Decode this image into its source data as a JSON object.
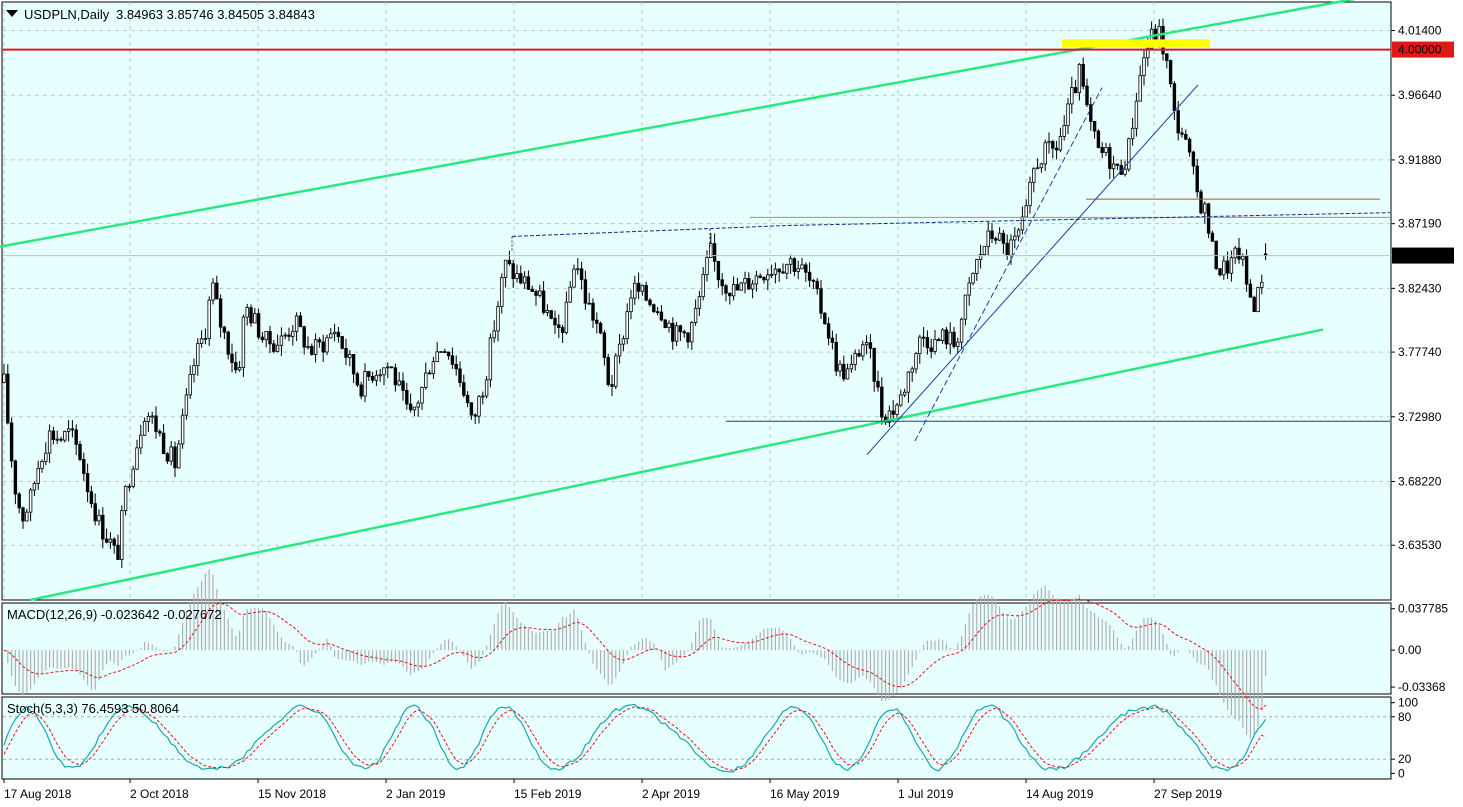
{
  "header": {
    "symbol": "USDPLN,Daily",
    "ohlc": "3.84963 3.85746 3.84505 3.84843"
  },
  "colors": {
    "background": "#e8ffff",
    "channel": "#2be87e",
    "resistance": "#e01818",
    "highlight": "#ffff00",
    "trend": "#1a3fa0",
    "macd_hist": "#b0b0b0",
    "macd_signal": "#e01818",
    "stoch_main": "#18a8b0",
    "stoch_signal": "#e01818",
    "current_price_label": "#000000"
  },
  "chart_data": [
    {
      "type": "candlestick",
      "title": "USDPLN,Daily",
      "ylim": [
        3.595,
        4.035
      ],
      "y_ticks": [
        "4.01400",
        "3.96640",
        "3.91880",
        "3.87190",
        "3.82430",
        "3.77740",
        "3.72980",
        "3.68220",
        "3.63530"
      ],
      "x_ticks": [
        "17 Aug 2018",
        "2 Oct 2018",
        "15 Nov 2018",
        "2 Jan 2019",
        "15 Feb 2019",
        "2 Apr 2019",
        "16 May 2019",
        "1 Jul 2019",
        "14 Aug 2019",
        "27 Sep 2019"
      ],
      "price_path": [
        [
          0,
          3.785
        ],
        [
          6,
          3.74
        ],
        [
          14,
          3.682
        ],
        [
          22,
          3.655
        ],
        [
          30,
          3.668
        ],
        [
          40,
          3.7
        ],
        [
          50,
          3.718
        ],
        [
          60,
          3.714
        ],
        [
          70,
          3.718
        ],
        [
          80,
          3.702
        ],
        [
          90,
          3.672
        ],
        [
          100,
          3.65
        ],
        [
          110,
          3.638
        ],
        [
          117,
          3.625
        ],
        [
          125,
          3.672
        ],
        [
          135,
          3.705
        ],
        [
          145,
          3.735
        ],
        [
          155,
          3.724
        ],
        [
          165,
          3.708
        ],
        [
          175,
          3.695
        ],
        [
          185,
          3.735
        ],
        [
          195,
          3.772
        ],
        [
          205,
          3.793
        ],
        [
          212,
          3.828
        ],
        [
          220,
          3.8
        ],
        [
          230,
          3.778
        ],
        [
          238,
          3.76
        ],
        [
          245,
          3.812
        ],
        [
          255,
          3.8
        ],
        [
          265,
          3.785
        ],
        [
          280,
          3.785
        ],
        [
          295,
          3.8
        ],
        [
          310,
          3.778
        ],
        [
          325,
          3.785
        ],
        [
          335,
          3.795
        ],
        [
          345,
          3.778
        ],
        [
          360,
          3.752
        ],
        [
          375,
          3.765
        ],
        [
          390,
          3.768
        ],
        [
          400,
          3.748
        ],
        [
          410,
          3.728
        ],
        [
          420,
          3.746
        ],
        [
          432,
          3.774
        ],
        [
          445,
          3.784
        ],
        [
          455,
          3.768
        ],
        [
          465,
          3.748
        ],
        [
          472,
          3.724
        ],
        [
          485,
          3.758
        ],
        [
          495,
          3.8
        ],
        [
          505,
          3.842
        ],
        [
          515,
          3.834
        ],
        [
          530,
          3.826
        ],
        [
          545,
          3.81
        ],
        [
          555,
          3.79
        ],
        [
          565,
          3.8
        ],
        [
          575,
          3.848
        ],
        [
          585,
          3.818
        ],
        [
          598,
          3.796
        ],
        [
          610,
          3.75
        ],
        [
          620,
          3.78
        ],
        [
          632,
          3.825
        ],
        [
          645,
          3.818
        ],
        [
          660,
          3.81
        ],
        [
          675,
          3.79
        ],
        [
          690,
          3.793
        ],
        [
          700,
          3.818
        ],
        [
          710,
          3.852
        ],
        [
          720,
          3.832
        ],
        [
          735,
          3.822
        ],
        [
          750,
          3.83
        ],
        [
          765,
          3.838
        ],
        [
          780,
          3.842
        ],
        [
          790,
          3.845
        ],
        [
          800,
          3.84
        ],
        [
          812,
          3.826
        ],
        [
          825,
          3.802
        ],
        [
          838,
          3.765
        ],
        [
          850,
          3.762
        ],
        [
          862,
          3.785
        ],
        [
          872,
          3.77
        ],
        [
          882,
          3.733
        ],
        [
          890,
          3.733
        ],
        [
          900,
          3.742
        ],
        [
          912,
          3.77
        ],
        [
          922,
          3.79
        ],
        [
          935,
          3.784
        ],
        [
          945,
          3.79
        ],
        [
          955,
          3.783
        ],
        [
          965,
          3.812
        ],
        [
          975,
          3.84
        ],
        [
          985,
          3.858
        ],
        [
          995,
          3.866
        ],
        [
          1005,
          3.852
        ],
        [
          1015,
          3.858
        ],
        [
          1025,
          3.874
        ],
        [
          1035,
          3.916
        ],
        [
          1045,
          3.924
        ],
        [
          1055,
          3.926
        ],
        [
          1065,
          3.945
        ],
        [
          1072,
          3.965
        ],
        [
          1080,
          3.983
        ],
        [
          1088,
          3.95
        ],
        [
          1098,
          3.925
        ],
        [
          1108,
          3.922
        ],
        [
          1118,
          3.91
        ],
        [
          1128,
          3.924
        ],
        [
          1136,
          3.965
        ],
        [
          1144,
          3.995
        ],
        [
          1152,
          4.01
        ],
        [
          1160,
          4.012
        ],
        [
          1168,
          3.985
        ],
        [
          1175,
          3.948
        ],
        [
          1182,
          3.94
        ],
        [
          1190,
          3.918
        ],
        [
          1198,
          3.892
        ],
        [
          1206,
          3.88
        ],
        [
          1212,
          3.853
        ],
        [
          1220,
          3.838
        ],
        [
          1230,
          3.842
        ],
        [
          1240,
          3.852
        ],
        [
          1248,
          3.822
        ],
        [
          1256,
          3.812
        ],
        [
          1262,
          3.835
        ],
        [
          1267,
          3.848
        ]
      ],
      "current_price": 3.84843,
      "levels": [
        {
          "price": 4.0,
          "label": "4.00000"
        },
        {
          "price": 3.89,
          "from_x": 1086,
          "to_x": 1380
        },
        {
          "price": 3.8765,
          "from_x": 750,
          "to_x": 1390
        },
        {
          "price": 3.7265,
          "from_x": 726,
          "to_x": 1390
        }
      ],
      "channel_upper": [
        [
          0,
          3.855
        ],
        [
          1390,
          4.042
        ]
      ],
      "channel_lower": [
        [
          30,
          3.595
        ],
        [
          1323,
          3.794
        ]
      ],
      "highlight_zone": {
        "from_x": 1062,
        "to_x": 1210,
        "top": 4.0075,
        "bottom": 4.0015
      },
      "trend_lines": [
        [
          [
            867,
            3.702
          ],
          [
            1198,
            3.974
          ]
        ],
        [
          [
            915,
            3.712
          ],
          [
            1102,
            3.972
          ]
        ]
      ],
      "neckline": [
        [
          512,
          3.8625
        ],
        [
          785,
          3.8705
        ],
        [
          1390,
          3.88
        ]
      ]
    },
    {
      "type": "line",
      "title": "MACD(12,26,9) -0.023642 -0.027672",
      "params": "12,26,9",
      "histogram_last": -0.023642,
      "signal_last": -0.027672,
      "ylim": [
        -0.04,
        0.043
      ],
      "y_ticks": [
        "0.037785",
        "0.00",
        "-0.03368"
      ]
    },
    {
      "type": "line",
      "title": "Stoch(5,3,3) 76.4593 50.8064",
      "params": "5,3,3",
      "main_last": 76.4593,
      "signal_last": 50.8064,
      "ylim": [
        -8,
        108
      ],
      "y_ticks": [
        "100",
        "80",
        "20",
        "0"
      ],
      "levels": [
        80,
        20
      ]
    }
  ]
}
